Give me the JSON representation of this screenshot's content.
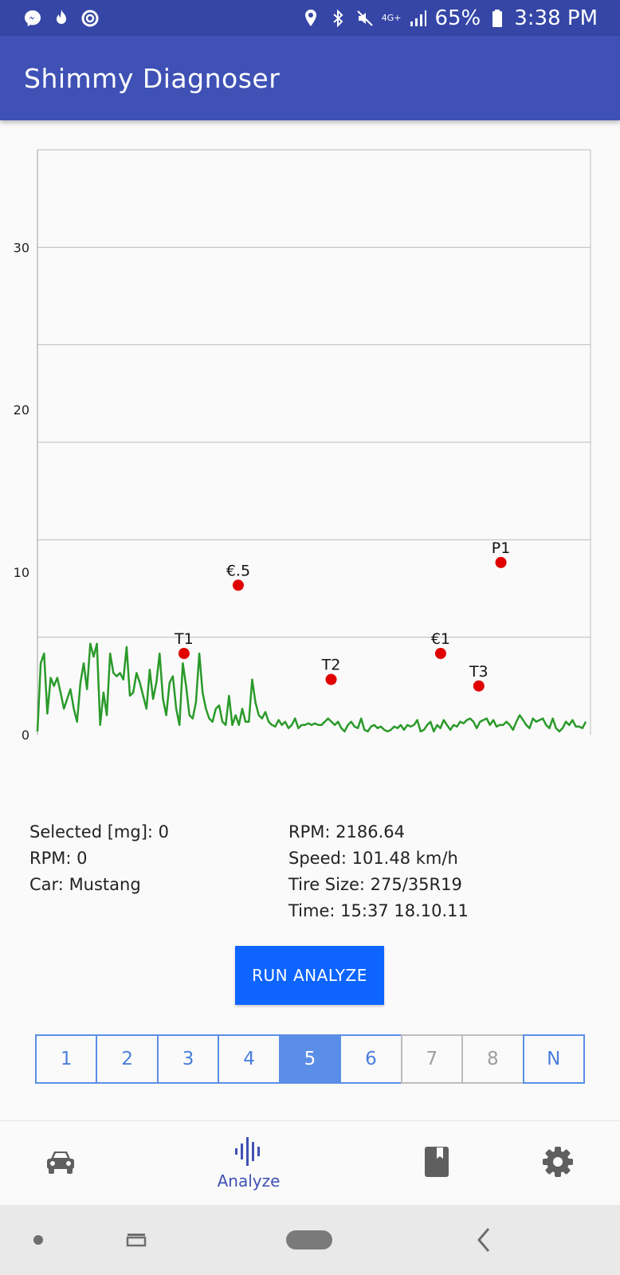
{
  "status_bar": {
    "battery": "65%",
    "time": "3:38 PM",
    "network": "4G+",
    "icons_left": [
      "messenger-icon",
      "fire-icon",
      "ring-icon"
    ],
    "icons_right": [
      "location-icon",
      "bluetooth-icon",
      "mute-icon",
      "signal-icon",
      "battery-icon"
    ]
  },
  "app_bar": {
    "title": "Shimmy Diagnoser"
  },
  "chart_data": {
    "type": "line",
    "title": "",
    "xlabel": "",
    "ylabel": "",
    "ylim": [
      0,
      36
    ],
    "yticks": [
      0,
      10,
      20,
      30
    ],
    "grid": true,
    "line_color": "#2a9a2a",
    "marker_color": "#e00000",
    "series": [
      {
        "values": [
          0.2,
          4.4,
          5.0,
          1.3,
          3.5,
          3.0,
          3.5,
          2.6,
          1.6,
          2.2,
          2.8,
          1.6,
          0.8,
          3.2,
          4.4,
          2.8,
          5.6,
          4.8,
          5.6,
          0.6,
          2.6,
          1.2,
          5.0,
          3.8,
          3.6,
          3.8,
          3.4,
          5.4,
          2.4,
          2.6,
          3.8,
          3.2,
          2.4,
          1.6,
          4.0,
          2.2,
          3.2,
          5.0,
          2.2,
          1.2,
          3.2,
          3.6,
          1.6,
          0.6,
          4.4,
          3.0,
          1.2,
          1.0,
          2.0,
          5.0,
          2.6,
          1.6,
          1.0,
          0.8,
          1.6,
          1.8,
          0.8,
          0.6,
          2.4,
          0.6,
          1.2,
          0.6,
          1.6,
          0.8,
          0.8,
          3.4,
          2.0,
          1.2,
          1.0,
          1.4,
          0.8,
          0.6,
          0.5,
          0.9,
          0.6,
          0.8,
          0.4,
          0.6,
          1.0,
          0.4,
          0.6,
          0.6,
          0.7,
          0.6,
          0.7,
          0.6,
          0.6,
          0.8,
          1.0,
          0.8,
          0.6,
          0.8,
          0.4,
          0.2,
          0.6,
          0.8,
          0.5,
          0.4,
          1.0,
          0.3,
          0.2,
          0.5,
          0.6,
          0.4,
          0.5,
          0.3,
          0.2,
          0.3,
          0.5,
          0.4,
          0.6,
          0.3,
          0.6,
          0.5,
          0.6,
          0.9,
          0.2,
          0.3,
          0.6,
          0.8,
          0.2,
          0.6,
          0.4,
          0.9,
          0.6,
          0.3,
          0.6,
          0.5,
          0.8,
          0.7,
          0.9,
          1.0,
          0.8,
          0.4,
          0.8,
          0.9,
          1.0,
          0.6,
          0.9,
          0.5,
          0.6,
          0.6,
          0.8,
          0.6,
          0.3,
          0.8,
          1.2,
          0.9,
          0.6,
          0.4,
          1.0,
          0.8,
          0.9,
          1.0,
          0.6,
          0.4,
          1.0,
          0.4,
          0.2,
          0.4,
          0.8,
          0.6,
          0.9,
          0.5,
          0.5,
          0.4,
          0.8
        ]
      }
    ],
    "markers": [
      {
        "label": "T1",
        "x": 0.265,
        "y": 5.0
      },
      {
        "label": "€.5",
        "x": 0.363,
        "y": 9.2
      },
      {
        "label": "T2",
        "x": 0.531,
        "y": 3.4
      },
      {
        "label": "€1",
        "x": 0.729,
        "y": 5.0
      },
      {
        "label": "T3",
        "x": 0.798,
        "y": 3.0
      },
      {
        "label": "P1",
        "x": 0.838,
        "y": 10.6
      }
    ]
  },
  "info_left": [
    {
      "label": "Selected [mg]:",
      "value": "0"
    },
    {
      "label": "RPM:",
      "value": "0"
    },
    {
      "label": "Car:",
      "value": "Mustang"
    }
  ],
  "info_right": [
    {
      "label": "RPM:",
      "value": "2186.64"
    },
    {
      "label": "Speed:",
      "value": "101.48 km/h"
    },
    {
      "label": "Tire Size:",
      "value": "275/35R19"
    },
    {
      "label": "Time:",
      "value": "15:37 18.10.11"
    }
  ],
  "run_button": {
    "label": "RUN ANALYZE"
  },
  "pager": {
    "pages": [
      {
        "label": "1",
        "state": "normal"
      },
      {
        "label": "2",
        "state": "normal"
      },
      {
        "label": "3",
        "state": "normal"
      },
      {
        "label": "4",
        "state": "normal"
      },
      {
        "label": "5",
        "state": "active"
      },
      {
        "label": "6",
        "state": "normal"
      },
      {
        "label": "7",
        "state": "disabled"
      },
      {
        "label": "8",
        "state": "disabled"
      },
      {
        "label": "N",
        "state": "normal"
      }
    ]
  },
  "bottom_nav": {
    "analyze_label": "Analyze",
    "icons": [
      "car-icon",
      "waveform-icon",
      "book-icon",
      "gear-icon"
    ]
  }
}
